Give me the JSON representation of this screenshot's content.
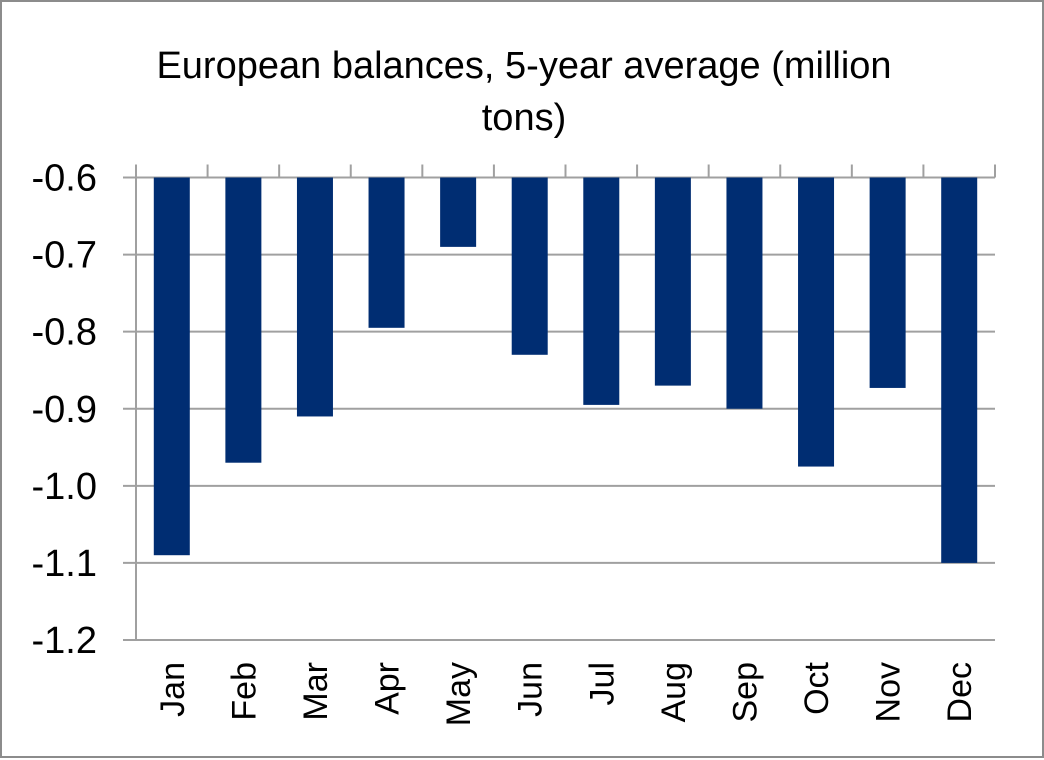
{
  "chart_data": {
    "type": "bar",
    "title_lines": [
      "European balances, 5-year average (million",
      "tons)"
    ],
    "title": "European balances, 5-year average (million tons)",
    "categories": [
      "Jan",
      "Feb",
      "Mar",
      "Apr",
      "May",
      "Jun",
      "Jul",
      "Aug",
      "Sep",
      "Oct",
      "Nov",
      "Dec"
    ],
    "values": [
      -1.09,
      -0.97,
      -0.91,
      -0.795,
      -0.69,
      -0.83,
      -0.895,
      -0.87,
      -0.9,
      -0.975,
      -0.873,
      -1.1
    ],
    "baseline": -0.6,
    "ylim": [
      -1.2,
      -0.6
    ],
    "yticks": [
      "-0.6",
      "-0.7",
      "-0.8",
      "-0.9",
      "-1.0",
      "-1.1",
      "-1.2"
    ],
    "xlabel": "",
    "ylabel": "",
    "grid": true,
    "legend": "none",
    "bar_color": "#002D72",
    "grid_color": "#A0A0A0"
  }
}
